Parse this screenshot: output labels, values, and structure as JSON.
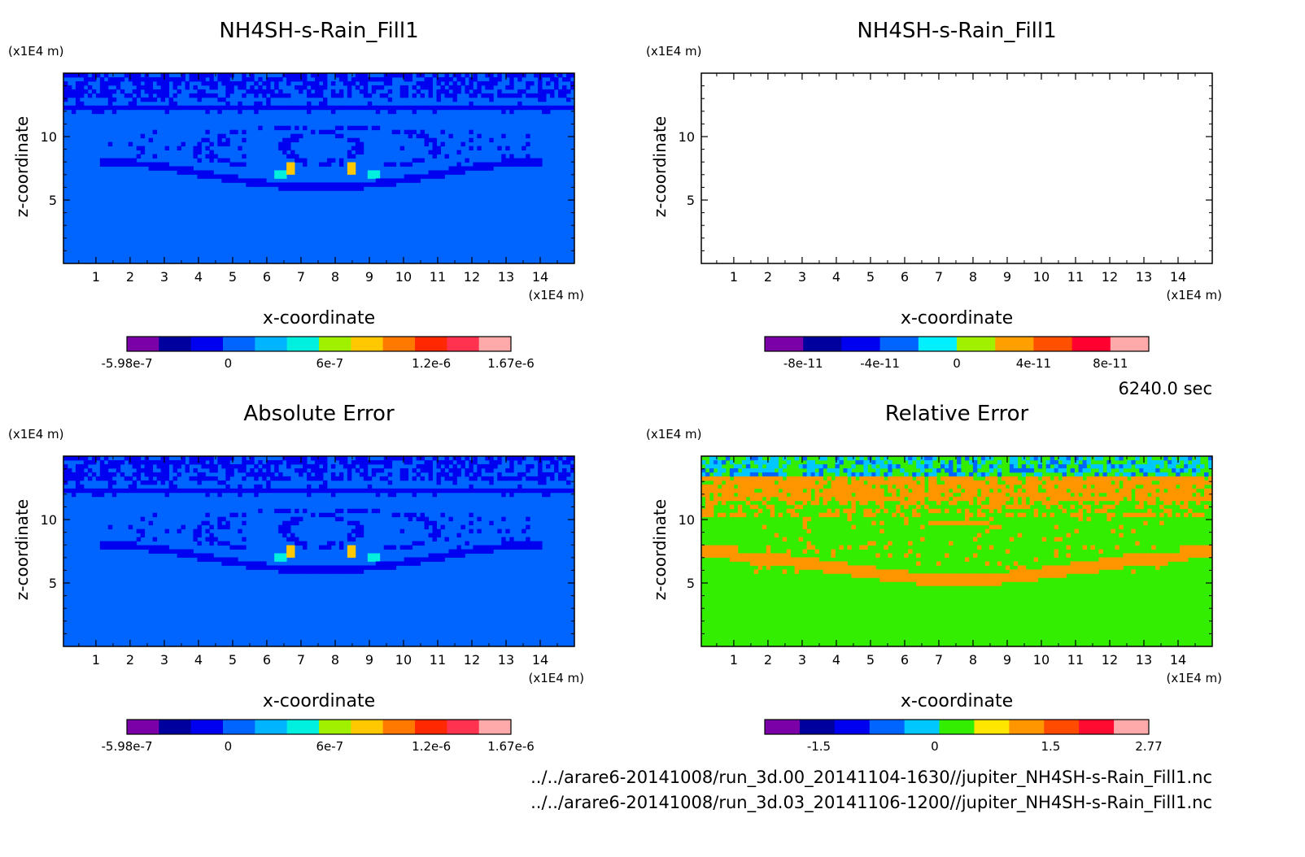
{
  "time_label": "6240.0 sec",
  "footer": {
    "line1": "../../arare6-20141008/run_3d.00_20141104-1630//jupiter_NH4SH-s-Rain_Fill1.nc",
    "line2": "../../arare6-20141008/run_3d.03_20141106-1200//jupiter_NH4SH-s-Rain_Fill1.nc"
  },
  "chart_data": [
    {
      "type": "heatmap",
      "title": "NH4SH-s-Rain_Fill1",
      "xlabel": "x-coordinate",
      "ylabel": "z-coordinate",
      "x_unit": "(x1E4 m)",
      "y_unit": "(x1E4 m)",
      "xlim": [
        0.05,
        15.0
      ],
      "ylim": [
        0,
        15
      ],
      "x_ticks": [
        1,
        2,
        3,
        4,
        5,
        6,
        7,
        8,
        9,
        10,
        11,
        12,
        13,
        14
      ],
      "y_ticks": [
        5,
        10
      ],
      "field": "pattern",
      "colorbar": {
        "min": -5.98e-07,
        "max": 1.67e-06,
        "tick_labels": [
          "-5.98e-7",
          "0",
          "6e-7",
          "1.2e-6",
          "1.67e-6"
        ],
        "tick_values": [
          -5.98e-07,
          0,
          6e-07,
          1.2e-06,
          1.67e-06
        ],
        "colors": [
          "#7b00a8",
          "#00009f",
          "#0000f0",
          "#0064ff",
          "#00b4ff",
          "#00f0e0",
          "#a0f000",
          "#ffc800",
          "#ff7800",
          "#ff2800",
          "#ff3250",
          "#ffaaaa"
        ]
      }
    },
    {
      "type": "heatmap",
      "title": "NH4SH-s-Rain_Fill1",
      "xlabel": "x-coordinate",
      "ylabel": "z-coordinate",
      "x_unit": "(x1E4 m)",
      "y_unit": "(x1E4 m)",
      "xlim": [
        0.05,
        15.0
      ],
      "ylim": [
        0,
        15
      ],
      "x_ticks": [
        1,
        2,
        3,
        4,
        5,
        6,
        7,
        8,
        9,
        10,
        11,
        12,
        13,
        14
      ],
      "y_ticks": [
        5,
        10
      ],
      "field": "empty",
      "colorbar": {
        "min": -1e-10,
        "max": 1e-10,
        "tick_labels": [
          "-8e-11",
          "-4e-11",
          "0",
          "4e-11",
          "8e-11"
        ],
        "tick_values": [
          -8e-11,
          -4e-11,
          0,
          4e-11,
          8e-11
        ],
        "colors": [
          "#7b00a8",
          "#00009f",
          "#0000f0",
          "#0064ff",
          "#00f0ff",
          "#a0f000",
          "#ffa000",
          "#ff5000",
          "#ff0030",
          "#ffaaaa"
        ]
      }
    },
    {
      "type": "heatmap",
      "title": "Absolute Error",
      "xlabel": "x-coordinate",
      "ylabel": "z-coordinate",
      "x_unit": "(x1E4 m)",
      "y_unit": "(x1E4 m)",
      "xlim": [
        0.05,
        15.0
      ],
      "ylim": [
        0,
        15
      ],
      "x_ticks": [
        1,
        2,
        3,
        4,
        5,
        6,
        7,
        8,
        9,
        10,
        11,
        12,
        13,
        14
      ],
      "y_ticks": [
        5,
        10
      ],
      "field": "pattern",
      "colorbar": {
        "min": -5.98e-07,
        "max": 1.67e-06,
        "tick_labels": [
          "-5.98e-7",
          "0",
          "6e-7",
          "1.2e-6",
          "1.67e-6"
        ],
        "tick_values": [
          -5.98e-07,
          0,
          6e-07,
          1.2e-06,
          1.67e-06
        ],
        "colors": [
          "#7b00a8",
          "#00009f",
          "#0000f0",
          "#0064ff",
          "#00b4ff",
          "#00f0e0",
          "#a0f000",
          "#ffc800",
          "#ff7800",
          "#ff2800",
          "#ff3250",
          "#ffaaaa"
        ]
      }
    },
    {
      "type": "heatmap",
      "title": "Relative Error",
      "xlabel": "x-coordinate",
      "ylabel": "z-coordinate",
      "x_unit": "(x1E4 m)",
      "y_unit": "(x1E4 m)",
      "xlim": [
        0.05,
        15.0
      ],
      "ylim": [
        0,
        15
      ],
      "x_ticks": [
        1,
        2,
        3,
        4,
        5,
        6,
        7,
        8,
        9,
        10,
        11,
        12,
        13,
        14
      ],
      "y_ticks": [
        5,
        10
      ],
      "field": "relative",
      "colorbar": {
        "min": -2.2,
        "max": 2.77,
        "tick_labels": [
          "-1.5",
          "0",
          "1.5",
          "2.77"
        ],
        "tick_values": [
          -1.5,
          0,
          1.5,
          2.77
        ],
        "colors": [
          "#7b00a8",
          "#00009f",
          "#0000f0",
          "#0064ff",
          "#00c8ff",
          "#33ee00",
          "#ffe600",
          "#ff9600",
          "#ff4b00",
          "#ff0a30",
          "#ffaaaa"
        ]
      }
    }
  ]
}
